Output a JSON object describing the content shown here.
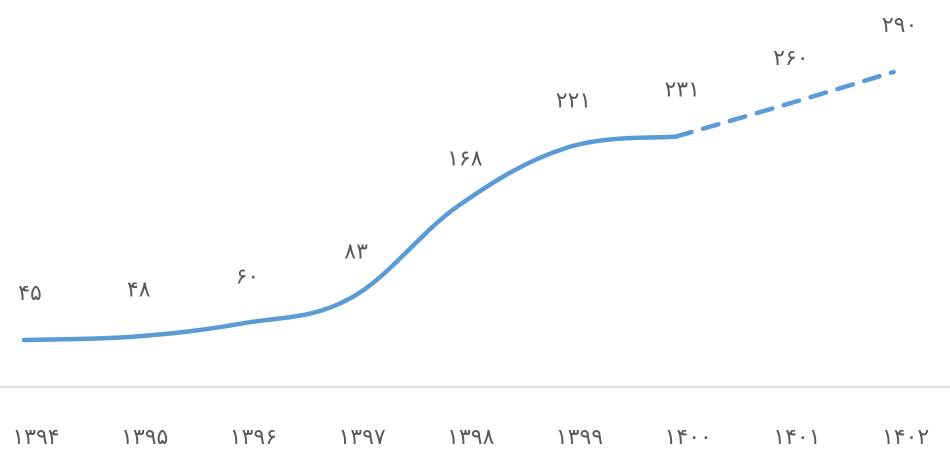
{
  "chart_data": {
    "type": "line",
    "categories": [
      "۱۳۹۴",
      "۱۳۹۵",
      "۱۳۹۶",
      "۱۳۹۷",
      "۱۳۹۸",
      "۱۳۹۹",
      "۱۴۰۰",
      "۱۴۰۱",
      "۱۴۰۲"
    ],
    "series": [
      {
        "color": "#5b9bd5",
        "dash": "solid",
        "values": [
          45,
          48,
          60,
          83,
          168,
          221,
          231,
          null,
          null
        ],
        "value_labels": [
          "۴۵",
          "۴۸",
          "۶۰",
          "۸۳",
          "۱۶۸",
          "۲۲۱",
          "۲۳۱",
          null,
          null
        ]
      },
      {
        "color": "#5b9bd5",
        "dash": "dashed",
        "values": [
          null,
          null,
          null,
          null,
          null,
          null,
          231,
          260,
          290
        ],
        "value_labels": [
          null,
          null,
          null,
          null,
          null,
          null,
          null,
          "۲۶۰",
          "۲۹۰"
        ]
      }
    ]
  }
}
